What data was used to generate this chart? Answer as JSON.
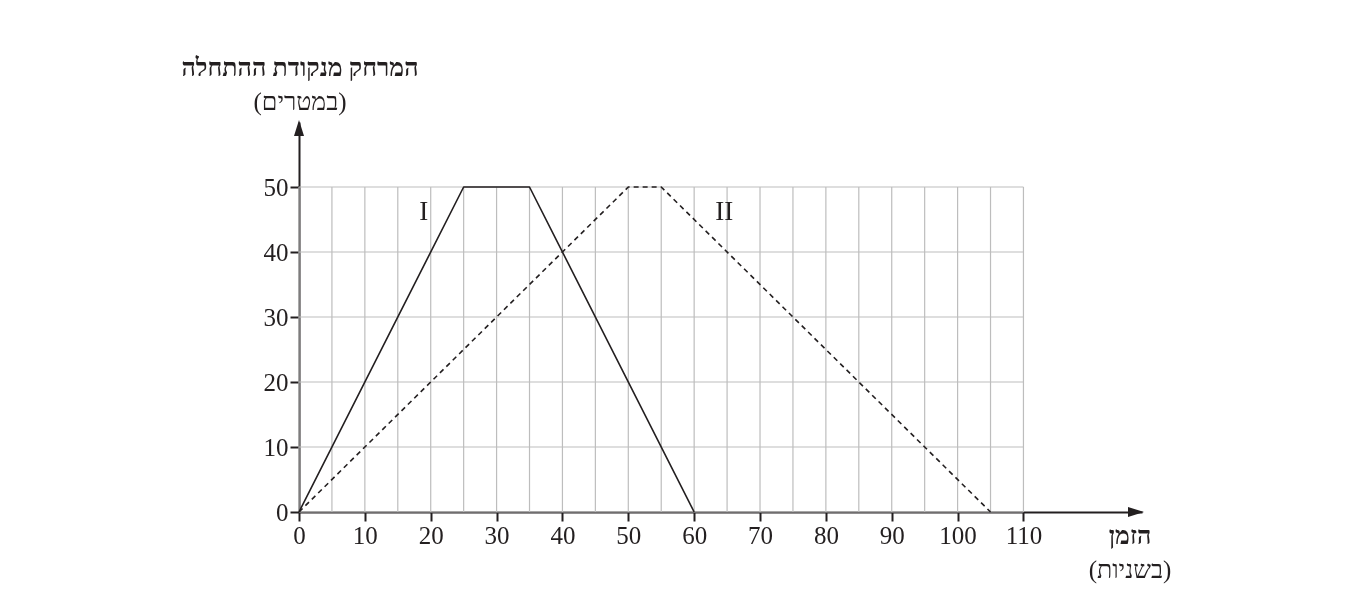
{
  "chart_data": {
    "type": "line",
    "xlabel": "הזמן\n(בשניות)",
    "ylabel": "המרחק מנקודת ההתחלה\n(במטרים)",
    "series": [
      {
        "name": "I",
        "color": "#231f20",
        "line_style": "solid",
        "x": [
          0,
          25,
          35,
          60
        ],
        "values": [
          0,
          50,
          50,
          0
        ]
      },
      {
        "name": "II",
        "color": "#231f20",
        "line_style": "dashed",
        "x": [
          0,
          50,
          55,
          105
        ],
        "values": [
          0,
          50,
          50,
          0
        ]
      }
    ],
    "xlim": [
      0,
      128
    ],
    "ylim": [
      0,
      60
    ],
    "xticks": [
      0,
      {
        "value": 5,
        "label": null
      },
      10,
      {
        "value": 15,
        "label": null
      },
      20,
      {
        "value": 25,
        "label": null
      },
      30,
      {
        "value": 35,
        "label": null
      },
      40,
      {
        "value": 45,
        "label": null
      },
      50,
      {
        "value": 55,
        "label": null
      },
      60,
      {
        "value": 65,
        "label": null
      },
      70,
      {
        "value": 75,
        "label": null
      },
      80,
      {
        "value": 85,
        "label": null
      },
      90,
      {
        "value": 95,
        "label": null
      },
      100,
      {
        "value": 105,
        "label": null
      },
      110
    ],
    "yticks": [
      0,
      10,
      20,
      30,
      40,
      50
    ],
    "grid": true
  }
}
